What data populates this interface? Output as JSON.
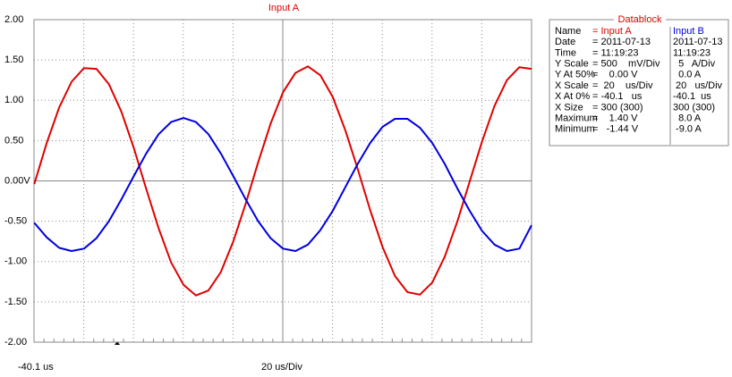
{
  "chart_data": {
    "type": "line",
    "title": "Input A",
    "x_start_label": "-40.1 us",
    "x_scale_label": "20 us/Div",
    "x": [
      -40,
      -35,
      -30,
      -25,
      -20,
      -15,
      -10,
      -5,
      0,
      5,
      10,
      15,
      20,
      25,
      30,
      35,
      40,
      45,
      50,
      55,
      60,
      65,
      70,
      75,
      80,
      85,
      90,
      95,
      100,
      105,
      110,
      115,
      120,
      125,
      130,
      135,
      140,
      145,
      150,
      155,
      159.9
    ],
    "xlim": [
      -40.1,
      159.9
    ],
    "ylim": [
      -2,
      2
    ],
    "yticks": [
      {
        "value": 2,
        "label": "2.00"
      },
      {
        "value": 1.5,
        "label": "1.50"
      },
      {
        "value": 1,
        "label": "1.00"
      },
      {
        "value": 0.5,
        "label": "0.50"
      },
      {
        "value": 0,
        "label": "0.00V"
      },
      {
        "value": -0.5,
        "label": "-0.50"
      },
      {
        "value": -1,
        "label": "-1.00"
      },
      {
        "value": -1.5,
        "label": "-1.50"
      },
      {
        "value": -2,
        "label": "-2.00"
      }
    ],
    "grid": true,
    "series": [
      {
        "name": "Input A",
        "color": "#e00000",
        "values": [
          -0.04,
          0.47,
          0.91,
          1.23,
          1.4,
          1.39,
          1.2,
          0.86,
          0.41,
          -0.1,
          -0.59,
          -1.01,
          -1.29,
          -1.42,
          -1.36,
          -1.13,
          -0.75,
          -0.28,
          0.23,
          0.71,
          1.1,
          1.34,
          1.42,
          1.31,
          1.04,
          0.63,
          0.15,
          -0.36,
          -0.82,
          -1.18,
          -1.38,
          -1.41,
          -1.26,
          -0.94,
          -0.51,
          -0.01,
          0.49,
          0.93,
          1.25,
          1.41,
          1.39
        ]
      },
      {
        "name": "Input B",
        "color": "#0000e0",
        "values": [
          -0.52,
          -0.7,
          -0.83,
          -0.87,
          -0.84,
          -0.71,
          -0.5,
          -0.23,
          0.06,
          0.34,
          0.58,
          0.73,
          0.78,
          0.73,
          0.58,
          0.34,
          0.06,
          -0.23,
          -0.5,
          -0.71,
          -0.84,
          -0.87,
          -0.79,
          -0.61,
          -0.37,
          -0.08,
          0.21,
          0.47,
          0.67,
          0.77,
          0.77,
          0.66,
          0.47,
          0.21,
          -0.09,
          -0.37,
          -0.62,
          -0.79,
          -0.87,
          -0.84,
          -0.55
        ]
      }
    ]
  },
  "datablock": {
    "title": "Datablock",
    "rows": [
      [
        "Name",
        "= Input A",
        "Input B"
      ],
      [
        "Date",
        "= 2011-07-13",
        "2011-07-13"
      ],
      [
        "Time",
        "= 11:19:23",
        "11:19:23"
      ],
      [
        "Y Scale",
        "= 500    mV/Div",
        "  5   A/Div"
      ],
      [
        "Y At 50%",
        "=    0.00 V",
        "  0.0 A"
      ],
      [
        "X Scale",
        "=  20    us/Div",
        " 20   us/Div"
      ],
      [
        "X At 0%",
        "= -40.1   us",
        "-40.1  us"
      ],
      [
        "X Size",
        "= 300 (300)",
        "300 (300)"
      ],
      [
        "Maximum",
        "=    1.40 V",
        "  8.0 A"
      ],
      [
        "Minimum",
        "=   -1.44 V",
        " -9.0 A"
      ]
    ]
  }
}
